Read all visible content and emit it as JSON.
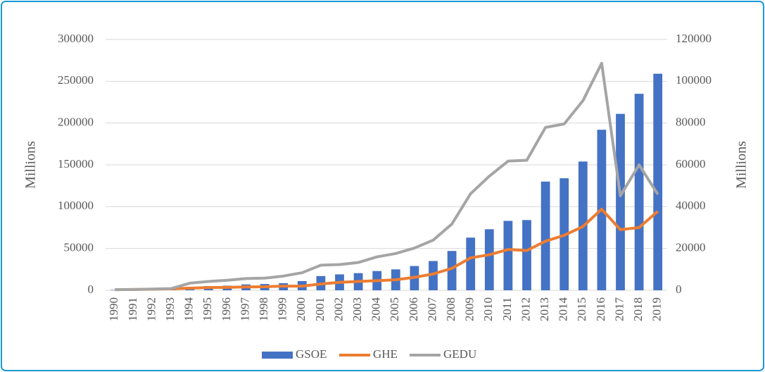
{
  "chart_data": {
    "type": "bar-line",
    "y_label": "Millions",
    "y2_label": "Millions",
    "categories": [
      "1990",
      "1991",
      "1992",
      "1993",
      "1994",
      "1995",
      "1996",
      "1997",
      "1998",
      "1999",
      "2000",
      "2001",
      "2002",
      "2003",
      "2004",
      "2005",
      "2006",
      "2007",
      "2008",
      "2009",
      "2010",
      "2011",
      "2012",
      "2013",
      "2014",
      "2015",
      "2016",
      "2017",
      "2018",
      "2019"
    ],
    "series": [
      {
        "name": "GSOE",
        "type": "bar",
        "color": "#4472c4",
        "values": [
          500,
          1000,
          1500,
          2000,
          4000,
          5000,
          5500,
          7000,
          7500,
          8500,
          11000,
          17000,
          19000,
          20500,
          23000,
          25000,
          29000,
          35000,
          47000,
          63000,
          73000,
          83000,
          84000,
          130000,
          134000,
          154000,
          192000,
          211000,
          235000,
          259000
        ]
      },
      {
        "name": "GHE",
        "type": "line",
        "axis": "y2",
        "color": "#ed7d31",
        "values": [
          300,
          400,
          500,
          700,
          1000,
          1300,
          1400,
          1600,
          1700,
          2000,
          2000,
          3000,
          3800,
          4200,
          4600,
          5000,
          6200,
          7800,
          10500,
          15500,
          17000,
          19500,
          19000,
          23500,
          26300,
          30500,
          38800,
          29000,
          30000,
          37800
        ]
      },
      {
        "name": "GEDU",
        "type": "line",
        "axis": "y2",
        "color": "#a5a5a5",
        "values": [
          300,
          400,
          600,
          800,
          3400,
          4200,
          4800,
          5600,
          5800,
          6800,
          8400,
          12000,
          12300,
          13300,
          16000,
          17600,
          20200,
          24000,
          31700,
          46200,
          54600,
          61800,
          62200,
          77900,
          79600,
          90700,
          108600,
          45200,
          60000,
          45900
        ]
      }
    ],
    "ylim": [
      0,
      300000
    ],
    "yticks": [
      0,
      50000,
      100000,
      150000,
      200000,
      250000,
      300000
    ],
    "y2lim": [
      0,
      120000
    ],
    "y2ticks": [
      0,
      20000,
      40000,
      60000,
      80000,
      100000,
      120000
    ],
    "grid": true,
    "legend": "bottom"
  }
}
